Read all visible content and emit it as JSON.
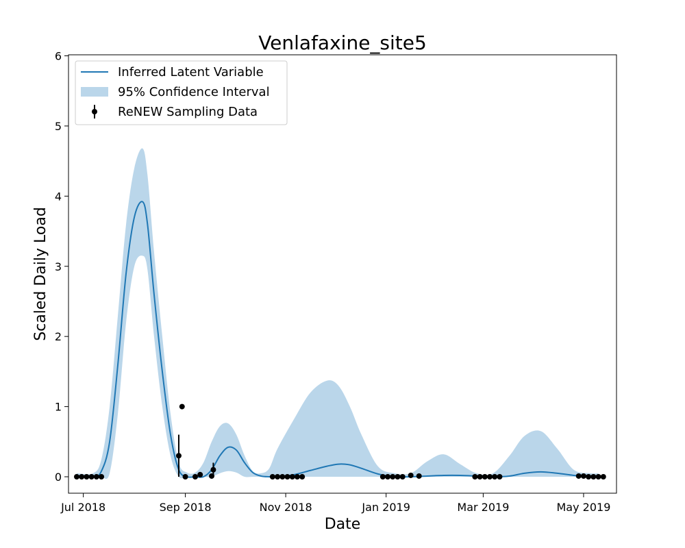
{
  "chart_data": {
    "type": "line",
    "title": "Venlafaxine_site5",
    "xlabel": "Date",
    "ylabel": "Scaled Daily Load",
    "ylim": [
      0,
      6
    ],
    "xlim": [
      "2018-06-22",
      "2019-05-21"
    ],
    "grid": false,
    "legend_position": "top-left",
    "x_ticks": [
      {
        "date": "2018-07-01",
        "label": "Jul 2018"
      },
      {
        "date": "2018-09-01",
        "label": "Sep 2018"
      },
      {
        "date": "2018-11-01",
        "label": "Nov 2018"
      },
      {
        "date": "2019-01-01",
        "label": "Jan 2019"
      },
      {
        "date": "2019-03-01",
        "label": "Mar 2019"
      },
      {
        "date": "2019-05-01",
        "label": "May 2019"
      }
    ],
    "y_ticks": [
      0,
      1,
      2,
      3,
      4,
      5,
      6
    ],
    "legend": {
      "line_label": "Inferred Latent Variable",
      "band_label": "95% Confidence Interval",
      "points_label": "ReNEW Sampling Data"
    },
    "colors": {
      "line": "#1f77b4",
      "band": "#bad6ea",
      "points": "#000000"
    },
    "series": [
      {
        "name": "Inferred Latent Variable",
        "x": [
          "2018-06-27",
          "2018-07-07",
          "2018-07-12",
          "2018-07-17",
          "2018-07-22",
          "2018-07-27",
          "2018-08-01",
          "2018-08-06",
          "2018-08-09",
          "2018-08-13",
          "2018-08-18",
          "2018-08-23",
          "2018-08-28",
          "2018-09-02",
          "2018-09-07",
          "2018-09-12",
          "2018-09-17",
          "2018-09-22",
          "2018-09-27",
          "2018-10-02",
          "2018-10-07",
          "2018-10-12",
          "2018-10-17",
          "2018-10-22",
          "2018-10-27",
          "2018-11-06",
          "2018-11-16",
          "2018-11-26",
          "2018-12-03",
          "2018-12-10",
          "2018-12-17",
          "2018-12-27",
          "2019-01-06",
          "2019-01-16",
          "2019-01-26",
          "2019-02-05",
          "2019-02-15",
          "2019-02-25",
          "2019-03-07",
          "2019-03-17",
          "2019-03-26",
          "2019-04-05",
          "2019-04-15",
          "2019-04-25",
          "2019-05-05",
          "2019-05-10"
        ],
        "y": [
          0.0,
          0.0,
          0.08,
          0.5,
          1.6,
          2.9,
          3.7,
          3.92,
          3.6,
          2.6,
          1.5,
          0.6,
          0.1,
          0.0,
          0.0,
          0.0,
          0.1,
          0.3,
          0.42,
          0.38,
          0.2,
          0.06,
          0.01,
          0.0,
          0.0,
          0.03,
          0.09,
          0.15,
          0.18,
          0.17,
          0.12,
          0.04,
          0.0,
          0.0,
          0.01,
          0.02,
          0.02,
          0.01,
          0.0,
          0.01,
          0.05,
          0.07,
          0.05,
          0.02,
          0.0,
          0.0
        ]
      },
      {
        "name": "95% Confidence Interval",
        "x": [
          "2018-06-27",
          "2018-07-07",
          "2018-07-12",
          "2018-07-17",
          "2018-07-22",
          "2018-07-27",
          "2018-08-01",
          "2018-08-06",
          "2018-08-09",
          "2018-08-13",
          "2018-08-18",
          "2018-08-23",
          "2018-08-28",
          "2018-09-02",
          "2018-09-07",
          "2018-09-12",
          "2018-09-17",
          "2018-09-22",
          "2018-09-27",
          "2018-10-02",
          "2018-10-07",
          "2018-10-12",
          "2018-10-17",
          "2018-10-22",
          "2018-10-27",
          "2018-11-06",
          "2018-11-16",
          "2018-11-26",
          "2018-12-03",
          "2018-12-10",
          "2018-12-17",
          "2018-12-27",
          "2019-01-06",
          "2019-01-16",
          "2019-01-26",
          "2019-02-05",
          "2019-02-15",
          "2019-02-25",
          "2019-03-07",
          "2019-03-17",
          "2019-03-26",
          "2019-04-05",
          "2019-04-15",
          "2019-04-25",
          "2019-05-05",
          "2019-05-10"
        ],
        "lower": [
          0.0,
          0.0,
          0.0,
          0.05,
          0.9,
          2.2,
          3.0,
          3.15,
          2.95,
          2.0,
          1.0,
          0.3,
          0.0,
          0.0,
          0.0,
          0.0,
          0.0,
          0.05,
          0.08,
          0.06,
          0.0,
          0.0,
          0.0,
          0.0,
          0.0,
          0.0,
          0.0,
          0.0,
          0.0,
          0.0,
          0.0,
          0.0,
          0.0,
          0.0,
          0.0,
          0.0,
          0.0,
          0.0,
          0.0,
          0.0,
          0.0,
          0.0,
          0.0,
          0.0,
          0.0,
          0.0
        ],
        "upper": [
          0.05,
          0.05,
          0.25,
          1.0,
          2.3,
          3.6,
          4.4,
          4.68,
          4.3,
          3.2,
          2.0,
          0.9,
          0.2,
          0.06,
          0.06,
          0.2,
          0.5,
          0.72,
          0.76,
          0.6,
          0.3,
          0.08,
          0.05,
          0.12,
          0.4,
          0.82,
          1.2,
          1.37,
          1.3,
          1.0,
          0.6,
          0.15,
          0.05,
          0.05,
          0.22,
          0.32,
          0.18,
          0.05,
          0.05,
          0.3,
          0.58,
          0.65,
          0.4,
          0.1,
          0.05,
          0.05
        ]
      },
      {
        "name": "ReNEW Sampling Data",
        "x": [
          "2018-06-27",
          "2018-06-30",
          "2018-07-03",
          "2018-07-06",
          "2018-07-09",
          "2018-07-12",
          "2018-08-28",
          "2018-08-30",
          "2018-09-01",
          "2018-09-07",
          "2018-09-10",
          "2018-09-17",
          "2018-09-18",
          "2018-10-24",
          "2018-10-27",
          "2018-10-30",
          "2018-11-02",
          "2018-11-05",
          "2018-11-08",
          "2018-11-11",
          "2018-12-30",
          "2019-01-02",
          "2019-01-05",
          "2019-01-08",
          "2019-01-11",
          "2019-01-16",
          "2019-01-21",
          "2019-02-24",
          "2019-02-27",
          "2019-03-02",
          "2019-03-05",
          "2019-03-08",
          "2019-03-11",
          "2019-04-28",
          "2019-05-01",
          "2019-05-04",
          "2019-05-07",
          "2019-05-10",
          "2019-05-13"
        ],
        "y": [
          0.0,
          0.0,
          0.0,
          0.0,
          0.0,
          0.0,
          0.3,
          1.0,
          0.0,
          0.0,
          0.03,
          0.01,
          0.1,
          0.0,
          0.0,
          0.0,
          0.0,
          0.0,
          0.0,
          0.0,
          0.0,
          0.0,
          0.0,
          0.0,
          0.0,
          0.02,
          0.01,
          0.0,
          0.0,
          0.0,
          0.0,
          0.0,
          0.0,
          0.01,
          0.01,
          0.0,
          0.0,
          0.0,
          0.0
        ],
        "err": [
          0.0,
          0.0,
          0.0,
          0.0,
          0.0,
          0.0,
          0.3,
          0.0,
          0.0,
          0.0,
          0.0,
          0.0,
          0.1,
          0.0,
          0.0,
          0.0,
          0.0,
          0.0,
          0.0,
          0.0,
          0.0,
          0.0,
          0.0,
          0.0,
          0.0,
          0.0,
          0.0,
          0.0,
          0.0,
          0.0,
          0.0,
          0.0,
          0.0,
          0.0,
          0.0,
          0.0,
          0.0,
          0.0,
          0.0
        ]
      }
    ]
  }
}
